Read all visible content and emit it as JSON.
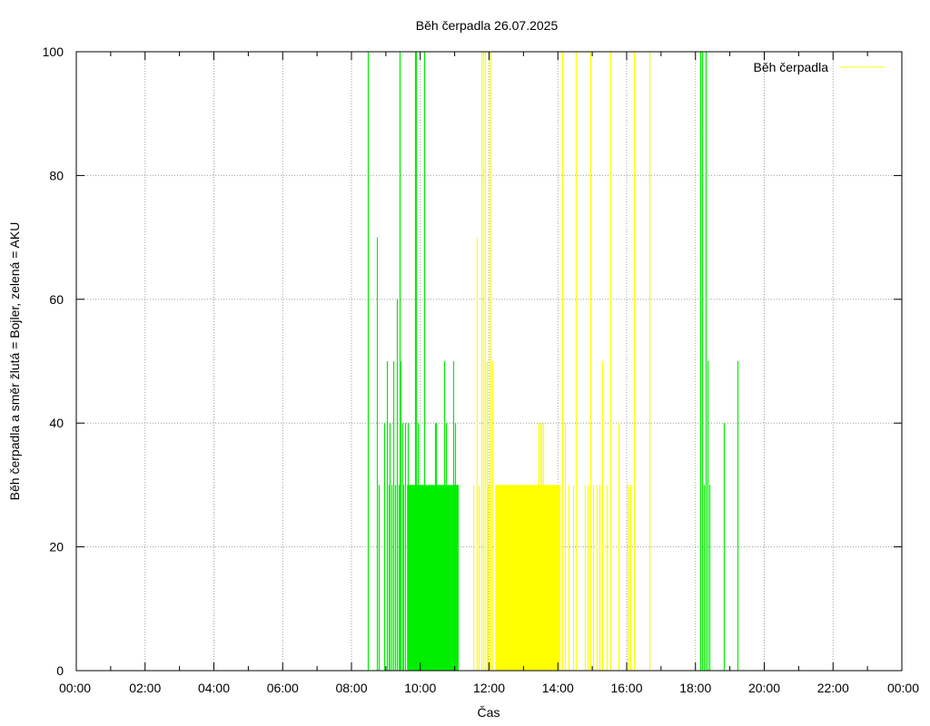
{
  "colors": {
    "bojler": "#ffff00",
    "aku": "#00ee00",
    "grid": "#a0a0a0",
    "frame": "#000000"
  },
  "chart_data": {
    "type": "bar",
    "title": "Běh čerpadla 26.07.2025",
    "xlabel": "Čas",
    "ylabel": "Běh čerpadla a směr žlutá = Bojler, zelená = AKU",
    "x_unit": "time of day (HH:MM)",
    "xlim": [
      "00:00",
      "24:00"
    ],
    "ylim": [
      0,
      100
    ],
    "x_ticks": [
      "00:00",
      "02:00",
      "04:00",
      "06:00",
      "08:00",
      "10:00",
      "12:00",
      "14:00",
      "16:00",
      "18:00",
      "20:00",
      "22:00",
      "00:00"
    ],
    "y_ticks": [
      0,
      20,
      40,
      60,
      80,
      100
    ],
    "grid": true,
    "legend": {
      "position": "top-right",
      "entries": [
        {
          "label": "Běh čerpadla",
          "color": "#ffff00"
        }
      ]
    },
    "series": [
      {
        "name": "AKU",
        "color": "#00ee00",
        "spikes": [
          [
            "08:28",
            100
          ],
          [
            "08:45",
            70
          ],
          [
            "08:47",
            30
          ],
          [
            "08:57",
            40
          ],
          [
            "09:02",
            50
          ],
          [
            "09:05",
            30
          ],
          [
            "09:07",
            40
          ],
          [
            "09:10",
            30
          ],
          [
            "09:13",
            50
          ],
          [
            "09:16",
            30
          ],
          [
            "09:19",
            60
          ],
          [
            "09:22",
            30
          ],
          [
            "09:24",
            100
          ],
          [
            "09:26",
            50
          ],
          [
            "09:28",
            40
          ],
          [
            "09:31",
            30
          ],
          [
            "09:33",
            40
          ],
          [
            "09:39",
            40
          ],
          [
            "09:42",
            30
          ],
          [
            "09:45",
            30
          ],
          [
            "09:49",
            30
          ],
          [
            "09:51",
            100
          ],
          [
            "09:53",
            100
          ],
          [
            "09:56",
            40
          ],
          [
            "10:07",
            100
          ],
          [
            "10:26",
            40
          ],
          [
            "10:28",
            40
          ],
          [
            "10:42",
            50
          ],
          [
            "10:44",
            40
          ],
          [
            "10:58",
            50
          ],
          [
            "11:00",
            40
          ],
          [
            "18:09",
            100
          ],
          [
            "18:11",
            100
          ],
          [
            "18:14",
            30
          ],
          [
            "18:18",
            100
          ],
          [
            "18:21",
            50
          ],
          [
            "18:24",
            30
          ],
          [
            "18:49",
            40
          ],
          [
            "19:13",
            50
          ]
        ],
        "blocks": [
          {
            "from": "09:37",
            "to": "11:07",
            "value": 30
          }
        ]
      },
      {
        "name": "Bojler",
        "color": "#ffff00",
        "spikes": [
          [
            "11:32",
            30
          ],
          [
            "11:38",
            70
          ],
          [
            "11:42",
            30
          ],
          [
            "11:46",
            100
          ],
          [
            "11:49",
            100
          ],
          [
            "11:53",
            100
          ],
          [
            "11:56",
            50
          ],
          [
            "11:58",
            30
          ],
          [
            "12:03",
            100
          ],
          [
            "12:06",
            50
          ],
          [
            "13:27",
            40
          ],
          [
            "13:29",
            40
          ],
          [
            "13:31",
            40
          ],
          [
            "13:34",
            40
          ],
          [
            "14:07",
            100
          ],
          [
            "14:13",
            40
          ],
          [
            "14:18",
            30
          ],
          [
            "14:27",
            30
          ],
          [
            "14:31",
            100
          ],
          [
            "14:47",
            30
          ],
          [
            "14:52",
            30
          ],
          [
            "14:57",
            100
          ],
          [
            "15:02",
            30
          ],
          [
            "15:08",
            30
          ],
          [
            "15:12",
            30
          ],
          [
            "15:18",
            50
          ],
          [
            "15:25",
            30
          ],
          [
            "15:32",
            100
          ],
          [
            "15:46",
            40
          ],
          [
            "16:01",
            30
          ],
          [
            "16:06",
            30
          ],
          [
            "16:07",
            30
          ],
          [
            "16:12",
            100
          ],
          [
            "16:40",
            100
          ]
        ],
        "blocks": [
          {
            "from": "12:11",
            "to": "14:04",
            "value": 30
          }
        ]
      }
    ]
  }
}
